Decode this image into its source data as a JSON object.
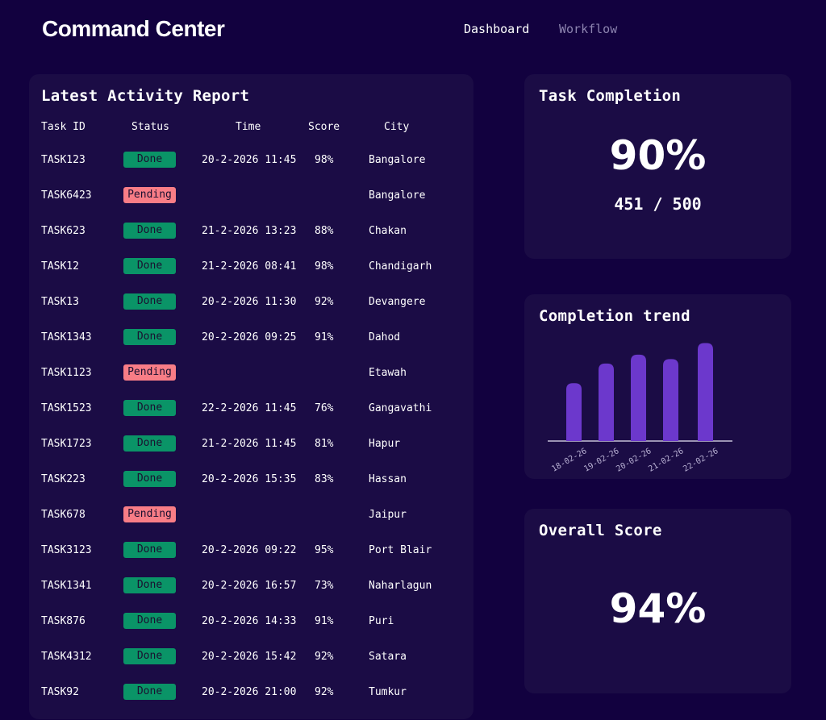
{
  "header": {
    "title": "Command Center",
    "nav": [
      {
        "label": "Dashboard",
        "active": true
      },
      {
        "label": "Workflow",
        "active": false
      }
    ]
  },
  "report": {
    "title": "Latest Activity Report",
    "columns": [
      "Task ID",
      "Status",
      "Time",
      "Score",
      "City"
    ],
    "rows": [
      {
        "id": "TASK123",
        "status": "Done",
        "time": "20-2-2026 11:45",
        "score": "98%",
        "city": "Bangalore"
      },
      {
        "id": "TASK6423",
        "status": "Pending",
        "time": "",
        "score": "",
        "city": "Bangalore"
      },
      {
        "id": "TASK623",
        "status": "Done",
        "time": "21-2-2026 13:23",
        "score": "88%",
        "city": "Chakan"
      },
      {
        "id": "TASK12",
        "status": "Done",
        "time": "21-2-2026 08:41",
        "score": "98%",
        "city": "Chandigarh"
      },
      {
        "id": "TASK13",
        "status": "Done",
        "time": "20-2-2026 11:30",
        "score": "92%",
        "city": "Devangere"
      },
      {
        "id": "TASK1343",
        "status": "Done",
        "time": "20-2-2026 09:25",
        "score": "91%",
        "city": "Dahod"
      },
      {
        "id": "TASK1123",
        "status": "Pending",
        "time": "",
        "score": "",
        "city": "Etawah"
      },
      {
        "id": "TASK1523",
        "status": "Done",
        "time": "22-2-2026 11:45",
        "score": "76%",
        "city": "Gangavathi"
      },
      {
        "id": "TASK1723",
        "status": "Done",
        "time": "21-2-2026 11:45",
        "score": "81%",
        "city": "Hapur"
      },
      {
        "id": "TASK223",
        "status": "Done",
        "time": "20-2-2026 15:35",
        "score": "83%",
        "city": "Hassan"
      },
      {
        "id": "TASK678",
        "status": "Pending",
        "time": "",
        "score": "",
        "city": "Jaipur"
      },
      {
        "id": "TASK3123",
        "status": "Done",
        "time": "20-2-2026 09:22",
        "score": "95%",
        "city": "Port Blair"
      },
      {
        "id": "TASK1341",
        "status": "Done",
        "time": "20-2-2026 16:57",
        "score": "73%",
        "city": "Naharlagun"
      },
      {
        "id": "TASK876",
        "status": "Done",
        "time": "20-2-2026 14:33",
        "score": "91%",
        "city": "Puri"
      },
      {
        "id": "TASK4312",
        "status": "Done",
        "time": "20-2-2026 15:42",
        "score": "92%",
        "city": "Satara"
      },
      {
        "id": "TASK92",
        "status": "Done",
        "time": "20-2-2026 21:00",
        "score": "92%",
        "city": "Tumkur"
      }
    ]
  },
  "completion": {
    "title": "Task Completion",
    "percent": "90%",
    "ratio": "451 / 500"
  },
  "trend": {
    "title": "Completion trend"
  },
  "score": {
    "title": "Overall Score",
    "value": "94%"
  },
  "colors": {
    "background": "#12013f",
    "card": "#1b0c45",
    "bar": "#6c38cc",
    "done": "#0a9467",
    "pending": "#f87d86"
  },
  "chart_data": {
    "type": "bar",
    "categories": [
      "18-02-26",
      "19-02-26",
      "20-02-26",
      "21-02-26",
      "22-02-26"
    ],
    "values": [
      65,
      87,
      97,
      92,
      110
    ],
    "grid": false,
    "ylim": [
      0,
      115
    ]
  }
}
